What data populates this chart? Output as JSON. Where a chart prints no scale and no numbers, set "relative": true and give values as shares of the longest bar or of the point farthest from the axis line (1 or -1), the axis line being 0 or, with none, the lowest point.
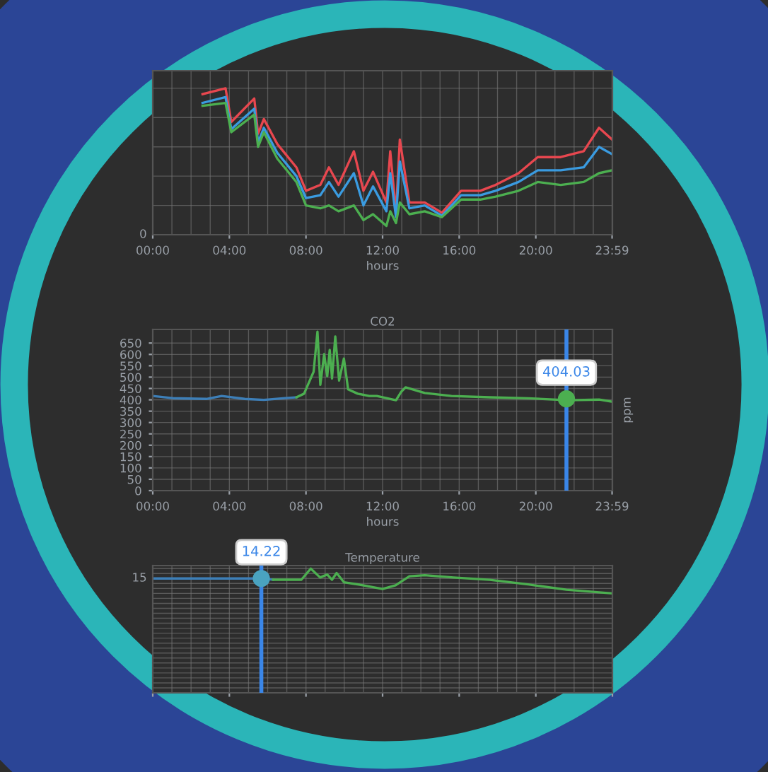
{
  "chart_data": [
    {
      "type": "line",
      "relative": true,
      "xlabel": "hours",
      "xlim": [
        0,
        23.983
      ],
      "xticks": [
        {
          "value": 0,
          "label": "00:00"
        },
        {
          "value": 4,
          "label": "04:00"
        },
        {
          "value": 8,
          "label": "08:00"
        },
        {
          "value": 12,
          "label": "12:00"
        },
        {
          "value": 16,
          "label": "16:00"
        },
        {
          "value": 20,
          "label": "20:00"
        },
        {
          "value": 23.983,
          "label": "23:59"
        }
      ],
      "grid": true,
      "annotations": [
        "0"
      ],
      "series": [
        {
          "color": "#e8474f",
          "x": [
            2.6,
            3.8,
            4.1,
            5.3,
            5.5,
            5.8,
            6.5,
            7.5,
            8,
            8.75,
            9.2,
            9.7,
            10.5,
            11,
            11.5,
            12.2,
            12.4,
            12.7,
            12.9,
            13.4,
            14.2,
            15.1,
            16.1,
            17.1,
            17.9,
            19.1,
            20.1,
            21.3,
            22.5,
            23.3,
            23.983
          ],
          "values": [
            0.96,
            1,
            0.77,
            0.93,
            0.69,
            0.79,
            0.62,
            0.46,
            0.3,
            0.34,
            0.46,
            0.34,
            0.57,
            0.3,
            0.43,
            0.22,
            0.57,
            0.15,
            0.65,
            0.22,
            0.22,
            0.15,
            0.3,
            0.3,
            0.34,
            0.42,
            0.53,
            0.53,
            0.57,
            0.73,
            0.65
          ]
        },
        {
          "color": "#3a9be0",
          "x": [
            2.6,
            3.8,
            4.1,
            5.3,
            5.5,
            5.8,
            6.5,
            7.5,
            8,
            8.75,
            9.2,
            9.7,
            10.5,
            11,
            11.5,
            12.2,
            12.4,
            12.7,
            12.9,
            13.4,
            14.2,
            15.1,
            16.1,
            17.1,
            17.9,
            19.1,
            20.1,
            21.3,
            22.5,
            23.3,
            23.983
          ],
          "values": [
            0.9,
            0.94,
            0.72,
            0.86,
            0.63,
            0.73,
            0.56,
            0.4,
            0.25,
            0.27,
            0.36,
            0.26,
            0.42,
            0.2,
            0.33,
            0.16,
            0.42,
            0.12,
            0.5,
            0.18,
            0.2,
            0.13,
            0.27,
            0.27,
            0.3,
            0.36,
            0.44,
            0.44,
            0.46,
            0.6,
            0.55
          ]
        },
        {
          "color": "#4caf50",
          "x": [
            2.6,
            3.8,
            4.1,
            5.3,
            5.5,
            5.8,
            6.5,
            7.5,
            8,
            8.75,
            9.2,
            9.7,
            10.5,
            11,
            11.5,
            12.2,
            12.4,
            12.7,
            12.9,
            13.4,
            14.2,
            15.1,
            16.1,
            17.1,
            17.9,
            19.1,
            20.1,
            21.3,
            22.5,
            23.3,
            23.983
          ],
          "values": [
            0.88,
            0.9,
            0.7,
            0.82,
            0.6,
            0.7,
            0.52,
            0.36,
            0.2,
            0.18,
            0.2,
            0.16,
            0.2,
            0.1,
            0.14,
            0.06,
            0.16,
            0.08,
            0.22,
            0.14,
            0.16,
            0.12,
            0.24,
            0.24,
            0.26,
            0.3,
            0.36,
            0.34,
            0.36,
            0.42,
            0.44
          ]
        }
      ]
    },
    {
      "type": "line",
      "title": "CO2",
      "xlabel": "hours",
      "y2label": "ppm",
      "xlim": [
        0,
        23.983
      ],
      "xticks": [
        {
          "value": 0,
          "label": "00:00"
        },
        {
          "value": 4,
          "label": "04:00"
        },
        {
          "value": 8,
          "label": "08:00"
        },
        {
          "value": 12,
          "label": "12:00"
        },
        {
          "value": 16,
          "label": "16:00"
        },
        {
          "value": 20,
          "label": "20:00"
        },
        {
          "value": 23.983,
          "label": "23:59"
        }
      ],
      "ylim": [
        0,
        710
      ],
      "yticks": [
        0,
        50,
        100,
        150,
        200,
        250,
        300,
        350,
        400,
        450,
        500,
        550,
        600,
        650
      ],
      "grid": true,
      "ref_lines": [
        {
          "axis": "x",
          "value": 21.6,
          "color": "#3a86e8"
        }
      ],
      "annotations": [
        {
          "text": "404.03",
          "x": 21.6,
          "y": 404
        }
      ],
      "series": [
        {
          "color": "#3d7fb8",
          "x": [
            0,
            1.1,
            2.8,
            3.6,
            4.8,
            5.8,
            6.8,
            7.5
          ],
          "values": [
            417,
            407,
            404,
            417,
            404,
            400,
            407,
            411
          ]
        },
        {
          "color": "#4caf50",
          "x": [
            7.5,
            7.9,
            8.1,
            8.4,
            8.6,
            8.75,
            8.95,
            9.11,
            9.24,
            9.36,
            9.53,
            9.73,
            9.98,
            10.2,
            10.7,
            11.3,
            11.7,
            12.7,
            12.98,
            13.2,
            14.2,
            15.6,
            17.6,
            19.6,
            21.7,
            23.3,
            23.983
          ],
          "values": [
            411,
            427,
            466,
            524,
            700,
            466,
            601,
            504,
            620,
            494,
            679,
            485,
            582,
            446,
            427,
            417,
            417,
            398,
            436,
            455,
            430,
            417,
            411,
            407,
            398,
            401,
            392
          ]
        },
        {
          "type": "scatter",
          "color": "#4caf50",
          "x": [
            21.6
          ],
          "values": [
            404
          ]
        }
      ]
    },
    {
      "type": "line",
      "title": "Temperature",
      "relative": true,
      "xlim": [
        0,
        23.983
      ],
      "grid": true,
      "tick_labels": false,
      "annotations": [
        "15",
        {
          "text": "14.22",
          "x": 5.67,
          "y": 0.6
        }
      ],
      "ref_lines": [
        {
          "axis": "x",
          "value": 5.67,
          "color": "#3a86e8"
        }
      ],
      "series": [
        {
          "color": "#3d7fb8",
          "x": [
            0,
            5.67,
            6.28
          ],
          "values": [
            0.6,
            0.6,
            0.55
          ]
        },
        {
          "color": "#4caf50",
          "x": [
            6.28,
            7.76,
            8.25,
            8.74,
            9.11,
            9.36,
            9.6,
            9.98,
            10.97,
            12.0,
            12.68,
            13.4,
            14.2,
            15.7,
            17.6,
            19.6,
            21.6,
            23.983
          ],
          "values": [
            0.55,
            0.55,
            1,
            0.64,
            0.76,
            0.55,
            0.82,
            0.45,
            0.33,
            0.18,
            0.33,
            0.69,
            0.73,
            0.64,
            0.55,
            0.36,
            0.15,
            0
          ]
        },
        {
          "type": "scatter",
          "color": "#4aa3c0",
          "x": [
            5.67
          ],
          "values": [
            0.6
          ]
        }
      ]
    }
  ]
}
